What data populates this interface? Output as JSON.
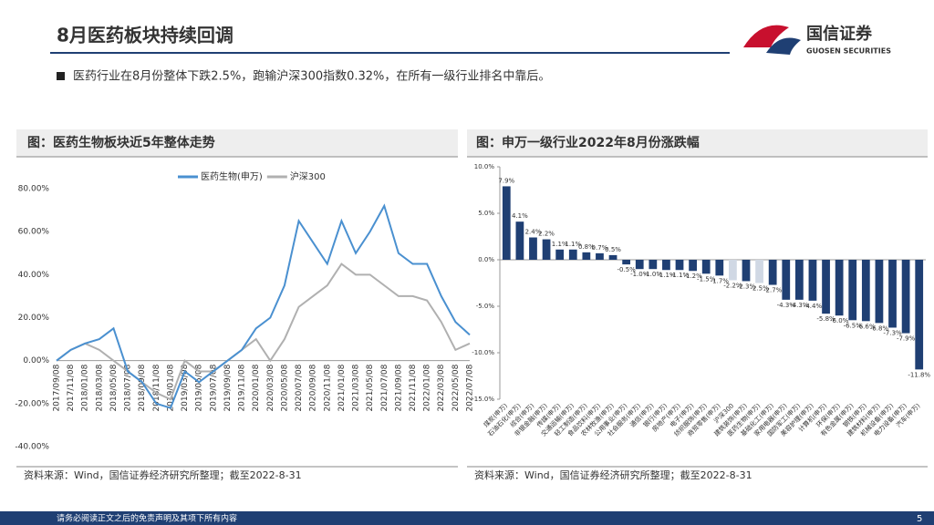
{
  "header": {
    "title": "8月医药板块持续回调",
    "logo_cn": "国信证券",
    "logo_en": "GUOSEN SECURITIES"
  },
  "bullet": "医药行业在8月份整体下跌2.5%，跑输沪深300指数0.32%，在所有一级行业排名中靠后。",
  "footer": {
    "disclaimer": "请务必阅读正文之后的免责声明及其项下所有内容",
    "page": "5"
  },
  "chart_data": [
    {
      "type": "line",
      "title": "图：医药生物板块近5年整体走势",
      "source": "资料来源：Wind，国信证券经济研究所整理；截至2022-8-31",
      "categories": [
        "2017/09/08",
        "2017/11/08",
        "2018/01/08",
        "2018/03/08",
        "2018/05/08",
        "2018/07/08",
        "2018/09/08",
        "2018/11/08",
        "2019/01/08",
        "2019/03/08",
        "2019/05/08",
        "2019/07/08",
        "2019/09/08",
        "2019/11/08",
        "2020/01/08",
        "2020/03/08",
        "2020/05/08",
        "2020/07/08",
        "2020/09/08",
        "2020/11/08",
        "2021/01/08",
        "2021/03/08",
        "2021/05/08",
        "2021/07/08",
        "2021/09/08",
        "2021/11/08",
        "2022/01/08",
        "2022/03/08",
        "2022/05/08",
        "2022/07/08"
      ],
      "series": [
        {
          "name": "医药生物(申万)",
          "color": "#4a90d0",
          "values": [
            0,
            5,
            8,
            10,
            15,
            -5,
            -10,
            -20,
            -22,
            -5,
            -10,
            -5,
            0,
            5,
            15,
            20,
            35,
            65,
            55,
            45,
            65,
            50,
            60,
            72,
            50,
            45,
            45,
            30,
            18,
            12
          ]
        },
        {
          "name": "沪深300",
          "color": "#b0b0b0",
          "values": [
            0,
            5,
            8,
            5,
            0,
            -5,
            -10,
            -15,
            -18,
            0,
            -5,
            -5,
            0,
            5,
            10,
            0,
            10,
            25,
            30,
            35,
            45,
            40,
            40,
            35,
            30,
            30,
            28,
            18,
            5,
            8
          ]
        }
      ],
      "ylim": [
        -40,
        80
      ],
      "yticks": [
        {
          "value": 80,
          "label": "80.00%"
        },
        {
          "value": 60,
          "label": "60.00%"
        },
        {
          "value": 40,
          "label": "40.00%"
        },
        {
          "value": 20,
          "label": "20.00%"
        },
        {
          "value": 0,
          "label": "0.00%"
        },
        {
          "value": -20,
          "label": "-20.00%"
        },
        {
          "value": -40,
          "label": "-40.00%"
        }
      ],
      "legend": "top"
    },
    {
      "type": "bar",
      "title": "图：申万一级行业2022年8月份涨跌幅",
      "source": "资料来源：Wind，国信证券经济研究所整理；截至2022-8-31",
      "categories": [
        "煤炭(申万)",
        "石油石化(申万)",
        "综合(申万)",
        "非银金融(申万)",
        "传媒(申万)",
        "交通运输(申万)",
        "轻工制造(申万)",
        "食品饮料(申万)",
        "农林牧渔(申万)",
        "公用事业(申万)",
        "社会服务(申万)",
        "通信(申万)",
        "银行(申万)",
        "房地产(申万)",
        "电子(申万)",
        "纺织服饰(申万)",
        "商贸零售(申万)",
        "沪深300",
        "建筑装饰(申万)",
        "医药生物(申万)",
        "基础化工(申万)",
        "家用电器(申万)",
        "国防军工(申万)",
        "美容护理(申万)",
        "计算机(申万)",
        "环保(申万)",
        "有色金属(申万)",
        "钢铁(申万)",
        "建筑材料(申万)",
        "机械设备(申万)",
        "电力设备(申万)",
        "汽车(申万)"
      ],
      "values": [
        7.9,
        4.1,
        2.4,
        2.2,
        1.1,
        1.1,
        0.8,
        0.7,
        0.5,
        -0.5,
        -1.0,
        -1.0,
        -1.1,
        -1.1,
        -1.2,
        -1.5,
        -1.7,
        -2.2,
        -2.3,
        -2.5,
        -2.7,
        -4.3,
        -4.3,
        -4.4,
        -5.8,
        -6.0,
        -6.5,
        -6.6,
        -6.8,
        -7.3,
        -7.9,
        -11.8
      ],
      "value_labels": [
        "7.9%",
        "4.1%",
        "2.4%",
        "2.2%",
        "1.1%",
        "1.1%",
        "0.8%",
        "0.7%",
        "0.5%",
        "-0.5%",
        "-1.0%",
        "-1.0%",
        "-1.1%",
        "-1.1%",
        "-1.2%",
        "-1.5%",
        "-1.7%",
        "-2.2%",
        "-2.3%",
        "-2.5%",
        "-2.7%",
        "-4.3%",
        "-4.3%",
        "-4.4%",
        "-5.8%",
        "-6.0%",
        "-6.5%",
        "-6.6%",
        "-6.8%",
        "-7.3%",
        "-7.9%",
        "-11.8%"
      ],
      "colors": [
        "#1f3f73",
        "#1f3f73",
        "#1f3f73",
        "#1f3f73",
        "#1f3f73",
        "#1f3f73",
        "#1f3f73",
        "#1f3f73",
        "#1f3f73",
        "#1f3f73",
        "#1f3f73",
        "#1f3f73",
        "#1f3f73",
        "#1f3f73",
        "#1f3f73",
        "#1f3f73",
        "#1f3f73",
        "#d0d8e4",
        "#1f3f73",
        "#d0d8e4",
        "#1f3f73",
        "#1f3f73",
        "#1f3f73",
        "#1f3f73",
        "#1f3f73",
        "#1f3f73",
        "#1f3f73",
        "#1f3f73",
        "#1f3f73",
        "#1f3f73",
        "#1f3f73",
        "#1f3f73"
      ],
      "ylim": [
        -15,
        10
      ],
      "yticks": [
        {
          "value": 10,
          "label": "10.0%"
        },
        {
          "value": 5,
          "label": "5.0%"
        },
        {
          "value": 0,
          "label": "0.0%"
        },
        {
          "value": -5,
          "label": "-5.0%"
        },
        {
          "value": -10,
          "label": "-10.0%"
        },
        {
          "value": -15,
          "label": "-15.0%"
        }
      ]
    }
  ]
}
